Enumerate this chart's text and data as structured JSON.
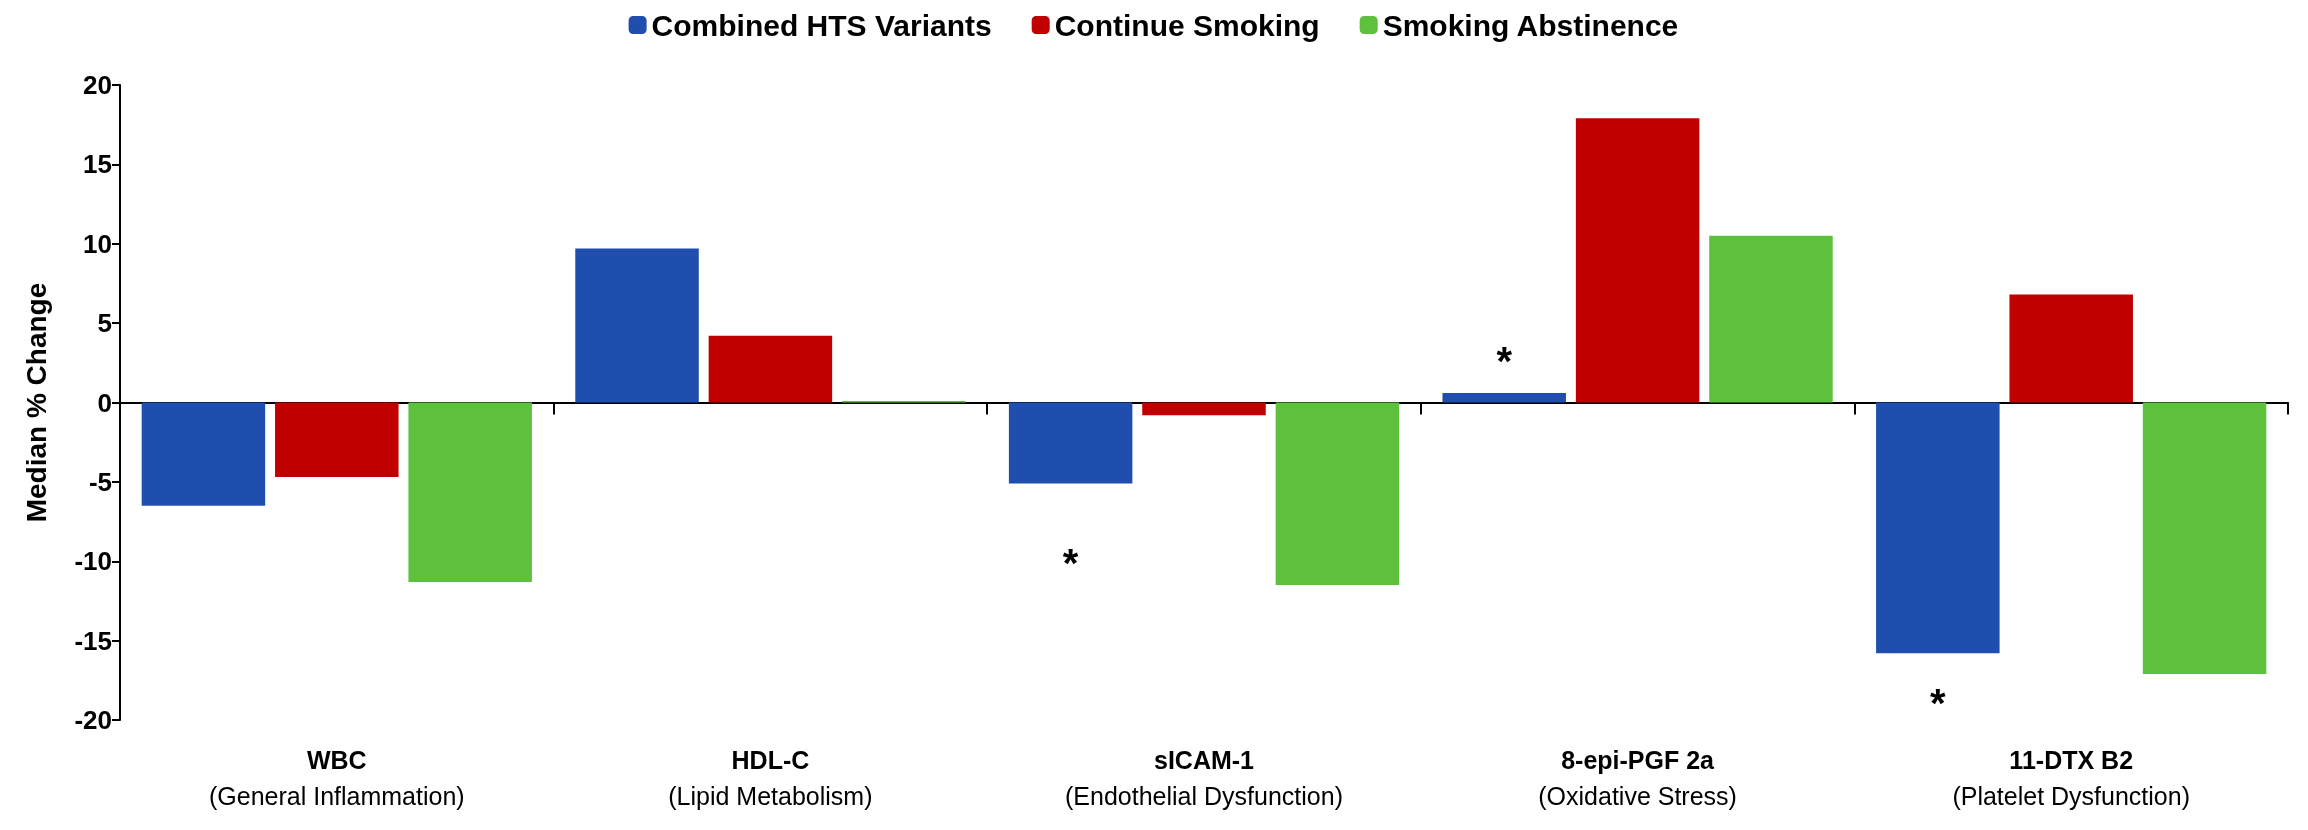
{
  "chart_data": {
    "type": "bar",
    "ylabel": "Median % Change",
    "categories": [
      "WBC\n(General Inflammation)",
      "HDL-C\n(Lipid Metabolism)",
      "sICAM-1\n(Endothelial Dysfunction)",
      "8-epi-PGF 2a\n(Oxidative Stress)",
      "11-DTX B2\n(Platelet Dysfunction)"
    ],
    "series": [
      {
        "name": "Combined HTS Variants",
        "color": "#1f4eaf",
        "values": [
          -6.5,
          9.7,
          -5.1,
          0.6,
          -15.8
        ]
      },
      {
        "name": "Continue Smoking",
        "color": "#c00000",
        "values": [
          -4.7,
          4.2,
          -0.8,
          17.9,
          6.8
        ]
      },
      {
        "name": "Smoking Abstinence",
        "color": "#5ec13d",
        "values": [
          -11.3,
          0.1,
          -11.5,
          10.5,
          -17.1
        ]
      }
    ],
    "ylim": [
      -20,
      20
    ],
    "yticks": [
      -20,
      -15,
      -10,
      -5,
      0,
      5,
      10,
      15,
      20
    ],
    "legend": "top",
    "annotations": [
      "*",
      "*",
      "*"
    ]
  }
}
